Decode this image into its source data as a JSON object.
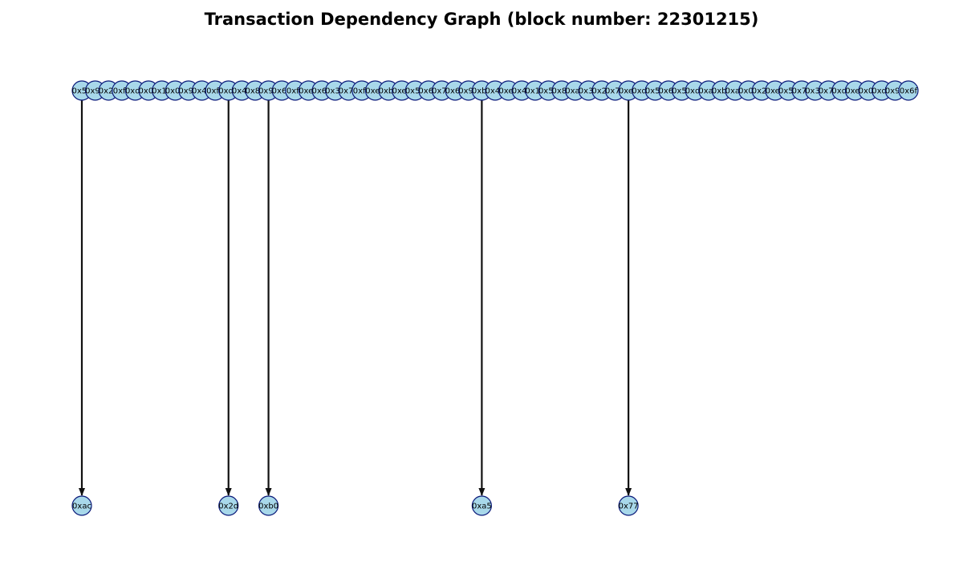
{
  "title": "Transaction Dependency Graph (block number: 22301215)",
  "colors": {
    "node_fill": "#a8d8ea",
    "node_stroke": "#0b1a7a",
    "edge": "#111111",
    "background": "#ffffff"
  },
  "top_nodes": [
    "0x5b",
    "0x93",
    "0x25",
    "0xf2",
    "0xd4",
    "0x01",
    "0x19",
    "0x03",
    "0x94",
    "0x40",
    "0xfa",
    "0xd6",
    "0x40",
    "0x8b",
    "0x93",
    "0x67",
    "0xfa",
    "0xe9",
    "0x60",
    "0x33",
    "0x71",
    "0xf1",
    "0xe7",
    "0xb9",
    "0xe6",
    "0x55",
    "0x68",
    "0x70",
    "0x60",
    "0x98",
    "0xb1",
    "0x45",
    "0xe0",
    "0x40",
    "0x10",
    "0x51",
    "0x80",
    "0xab",
    "0x36",
    "0x21",
    "0x71",
    "0xe4",
    "0xd0",
    "0x51",
    "0x60",
    "0x50",
    "0xd8",
    "0xa4",
    "0xb1",
    "0xa9",
    "0x06",
    "0x25",
    "0xe0",
    "0x56",
    "0x71",
    "0x31",
    "0x70",
    "0xd0",
    "0xe9",
    "0x00",
    "0xd0",
    "0x90",
    "0x6f"
  ],
  "bottom_nodes": [
    "0xac",
    "0x2d",
    "0xb0",
    "0xa5",
    "0x77"
  ],
  "edges": [
    {
      "from": 0,
      "to": 0
    },
    {
      "from": 11,
      "to": 1
    },
    {
      "from": 14,
      "to": 2
    },
    {
      "from": 30,
      "to": 3
    },
    {
      "from": 41,
      "to": 4
    }
  ]
}
